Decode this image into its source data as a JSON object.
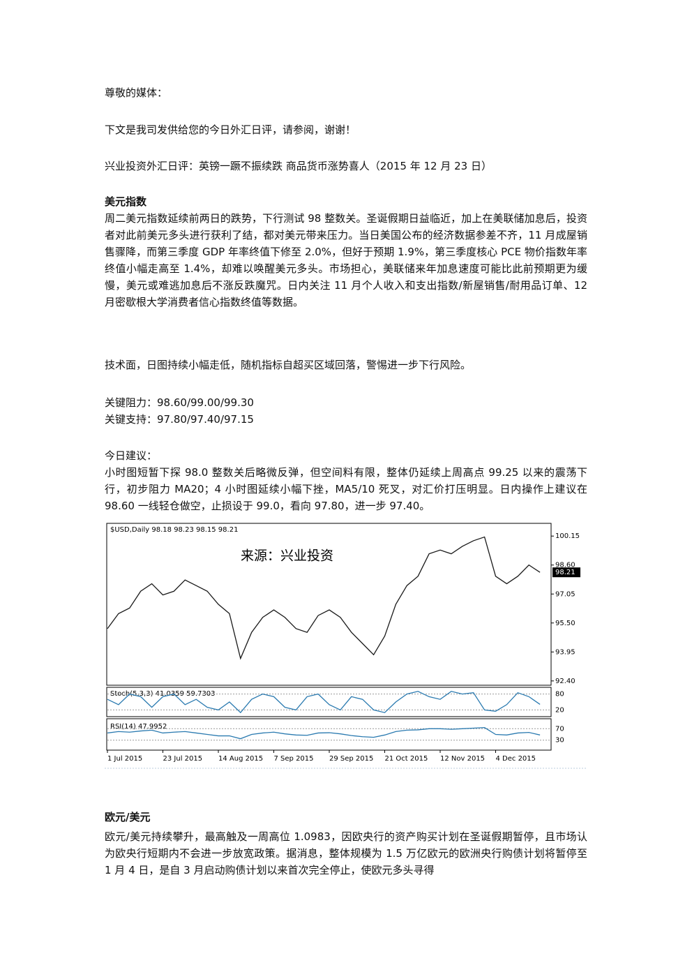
{
  "document": {
    "greeting": "尊敬的媒体：",
    "intro": "下文是我司发供给您的今日外汇日评，请参阅，谢谢！",
    "headline": "兴业投资外汇日评：英镑一蹶不振续跌 商品货币涨势喜人（2015 年 12 月 23 日）",
    "sections": [
      {
        "heading": "美元指数",
        "paragraphs": [
          "周二美元指数延续前两日的跌势，下行测试 98 整数关。圣诞假期日益临近，加上在美联储加息后，投资者对此前美元多头进行获利了结，都对美元带来压力。当日美国公布的经济数据参差不齐，11 月成屋销售骤降，而第三季度 GDP 年率终值下修至 2.0%，但好于预期 1.9%，第三季度核心 PCE 物价指数年率终值小幅走高至 1.4%，却难以唤醒美元多头。市场担心，美联储来年加息速度可能比此前预期更为缓慢，美元或难逃加息后不涨反跌魔咒。日内关注 11 月个人收入和支出指数/新屋销售/耐用品订单、12 月密歇根大学消费者信心指数终值等数据。",
          "技术面，日图持续小幅走低，随机指标自超买区域回落，警惕进一步下行风险。",
          "关键阻力：98.60/99.00/99.30",
          "关键支持：97.80/97.40/97.15",
          "今日建议：",
          "小时图短暂下探 98.0 整数关后略微反弹，但空间料有限，整体仍延续上周高点 99.25 以来的震荡下行，初步阻力 MA20；4 小时图延续小幅下挫，MA5/10 死叉，对汇价打压明显。日内操作上建议在 98.60 一线轻仓做空，止损设于 99.0，看向 97.80，进一步 97.40。"
        ]
      },
      {
        "heading": "欧元/美元",
        "paragraphs": [
          "欧元/美元持续攀升，最高触及一周高位 1.0983，因欧央行的资产购买计划在圣诞假期暂停，且市场认为欧央行短期内不会进一步放宽政策。据消息，整体规模为 1.5 万亿欧元的欧洲央行购债计划将暂停至 1 月 4 日，是自 3 月启动购债计划以来首次完全停止，使欧元多头寻得"
        ]
      }
    ]
  },
  "chart_data": {
    "type": "line",
    "title": "$USD,Daily 98.18 98.23 98.15 98.21",
    "annotation": "来源：兴业投资",
    "last_price": {
      "value": 98.21,
      "label": "98.21"
    },
    "xlim": [
      0,
      40
    ],
    "xticks": [
      {
        "value": 0,
        "label": "1 Jul 2015"
      },
      {
        "value": 5,
        "label": "23 Jul 2015"
      },
      {
        "value": 10,
        "label": "14 Aug 2015"
      },
      {
        "value": 15,
        "label": "7 Sep 2015"
      },
      {
        "value": 20,
        "label": "29 Sep 2015"
      },
      {
        "value": 25,
        "label": "21 Oct 2015"
      },
      {
        "value": 30,
        "label": "12 Nov 2015"
      },
      {
        "value": 35,
        "label": "4 Dec 2015"
      }
    ],
    "ylim": [
      92.17,
      100.83
    ],
    "yticks": [
      100.15,
      {
        "value": 98.6,
        "label": "98.60"
      },
      97.05,
      {
        "value": 95.5,
        "label": "95.50"
      },
      93.95,
      {
        "value": 92.4,
        "label": "92.40"
      }
    ],
    "series": [
      {
        "name": "USD",
        "color": "#1a1a1a",
        "values": [
          95.2,
          96.0,
          96.3,
          97.2,
          97.6,
          97.0,
          97.2,
          97.8,
          97.5,
          97.2,
          96.5,
          96.0,
          93.6,
          95.0,
          95.8,
          96.2,
          95.8,
          95.2,
          95.0,
          95.9,
          96.2,
          95.8,
          95.0,
          94.4,
          93.8,
          94.8,
          96.5,
          97.5,
          98.0,
          99.2,
          99.4,
          99.2,
          99.6,
          99.9,
          100.1,
          98.0,
          97.6,
          98.0,
          98.6,
          98.21
        ]
      }
    ],
    "panels": [
      {
        "label": "Stoch(5,3,3) 41.0359 59.7303",
        "ylim": [
          0,
          100
        ],
        "yticks": [
          20,
          80
        ],
        "color": "#2a7ab0",
        "values": [
          60,
          40,
          80,
          70,
          30,
          70,
          80,
          40,
          60,
          30,
          20,
          50,
          10,
          60,
          80,
          70,
          30,
          20,
          70,
          80,
          40,
          20,
          70,
          60,
          20,
          10,
          50,
          80,
          90,
          70,
          60,
          90,
          80,
          85,
          20,
          15,
          40,
          85,
          70,
          41
        ]
      },
      {
        "label": "RSI(14) 47.9952",
        "ylim": [
          0,
          100
        ],
        "yticks": [
          30,
          70
        ],
        "color": "#2a7ab0",
        "values": [
          55,
          60,
          58,
          62,
          65,
          55,
          58,
          60,
          55,
          50,
          45,
          45,
          35,
          50,
          55,
          58,
          52,
          48,
          47,
          55,
          56,
          52,
          46,
          42,
          40,
          48,
          60,
          65,
          66,
          70,
          70,
          68,
          70,
          72,
          74,
          50,
          48,
          55,
          57,
          48
        ]
      }
    ]
  }
}
